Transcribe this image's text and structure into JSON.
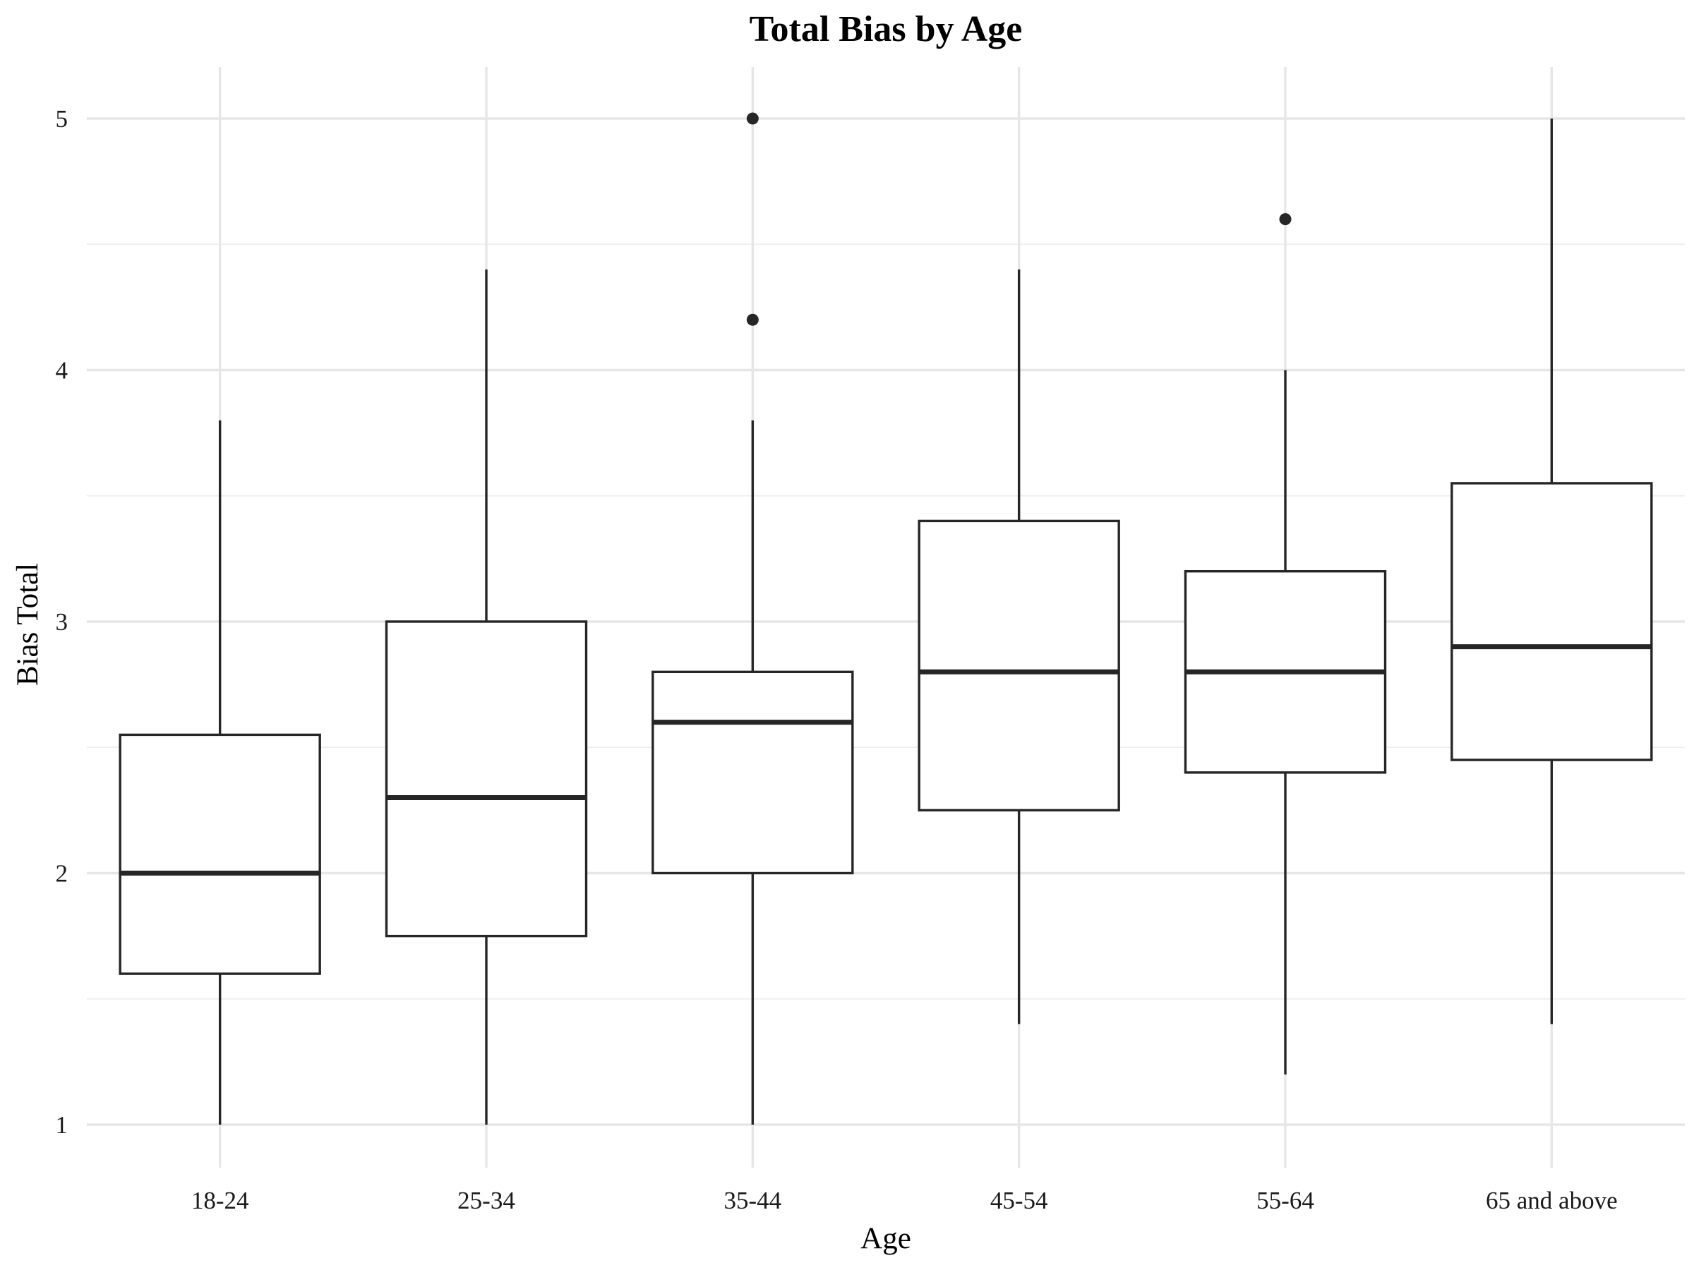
{
  "chart_data": {
    "type": "box",
    "title": "Total Bias by Age",
    "xlabel": "Age",
    "ylabel": "Bias Total",
    "ylim": [
      0.85,
      5.2
    ],
    "y_ticks": [
      1,
      2,
      3,
      4,
      5
    ],
    "y_tick_labels": [
      "1",
      "2",
      "3",
      "4",
      "5"
    ],
    "grid": true,
    "legend": "none",
    "categories": [
      "18-24",
      "25-34",
      "35-44",
      "45-54",
      "55-64",
      "65 and above"
    ],
    "boxes": [
      {
        "category": "18-24",
        "whisker_low": 1.0,
        "q1": 1.6,
        "median": 2.0,
        "q3": 2.55,
        "whisker_high": 3.8,
        "outliers": []
      },
      {
        "category": "25-34",
        "whisker_low": 1.0,
        "q1": 1.75,
        "median": 2.3,
        "q3": 3.0,
        "whisker_high": 4.4,
        "outliers": []
      },
      {
        "category": "35-44",
        "whisker_low": 1.0,
        "q1": 2.0,
        "median": 2.6,
        "q3": 2.8,
        "whisker_high": 3.8,
        "outliers": [
          4.2,
          5.0
        ]
      },
      {
        "category": "45-54",
        "whisker_low": 1.4,
        "q1": 2.25,
        "median": 2.8,
        "q3": 3.4,
        "whisker_high": 4.4,
        "outliers": []
      },
      {
        "category": "55-64",
        "whisker_low": 1.2,
        "q1": 2.4,
        "median": 2.8,
        "q3": 3.2,
        "whisker_high": 4.0,
        "outliers": [
          4.6
        ]
      },
      {
        "category": "65 and above",
        "whisker_low": 1.4,
        "q1": 2.45,
        "median": 2.9,
        "q3": 3.55,
        "whisker_high": 5.0,
        "outliers": []
      }
    ],
    "colors": {
      "box_line": "#262626",
      "box_fill": "#ffffff",
      "grid": "#e6e6e6"
    }
  }
}
